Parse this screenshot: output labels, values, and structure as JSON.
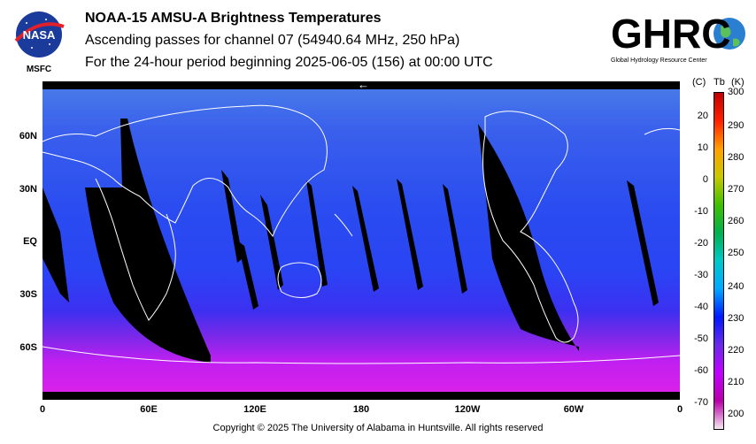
{
  "header": {
    "title": "NOAA-15 AMSU-A Brightness Temperatures",
    "subtitle1": "Ascending passes for channel 07 (54940.64 MHz, 250 hPa)",
    "subtitle2": "For the 24-hour period beginning 2025-06-05 (156) at 00:00 UTC"
  },
  "logos": {
    "nasa_text": "NASA",
    "msfc_text": "MSFC",
    "ghrc_text": "GHRC",
    "ghrc_subtitle": "Global Hydrology Resource Center"
  },
  "map": {
    "lat_labels": [
      "60N",
      "30N",
      "EQ",
      "30S",
      "60S"
    ],
    "lon_labels": [
      "0",
      "60E",
      "120E",
      "180",
      "120W",
      "60W",
      "0"
    ],
    "arrow_symbol": "←"
  },
  "colorbar": {
    "header_c": "(C)",
    "header_tb": "Tb",
    "header_k": "(K)",
    "celsius_ticks": [
      "20",
      "10",
      "0",
      "-10",
      "-20",
      "-30",
      "-40",
      "-50",
      "-60",
      "-70"
    ],
    "kelvin_ticks": [
      "300",
      "290",
      "280",
      "270",
      "260",
      "250",
      "240",
      "230",
      "220",
      "210",
      "200"
    ],
    "range_k": [
      195,
      300
    ],
    "colors": [
      "#f4e8f0",
      "#b800a8",
      "#c000ff",
      "#6a2ae8",
      "#0018ff",
      "#00a8ff",
      "#00c8c8",
      "#00b050",
      "#40c000",
      "#c8c800",
      "#ffa000",
      "#ff2000",
      "#c00000"
    ]
  },
  "footer": {
    "copyright": "Copyright © 2025 The University of Alabama in Huntsville.  All rights reserved"
  }
}
